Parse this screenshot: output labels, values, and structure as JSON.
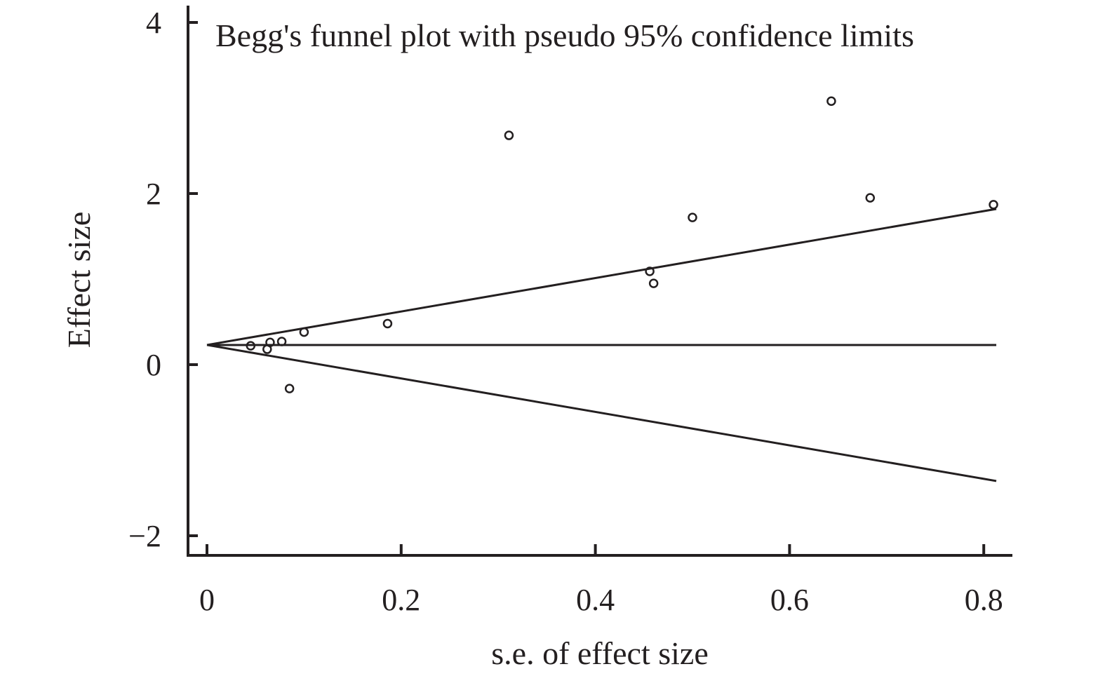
{
  "chart_data": {
    "type": "scatter",
    "title": "Begg's funnel plot with pseudo 95% confidence limits",
    "xlabel": "s.e. of effect size",
    "ylabel": "Effect size",
    "xlim": [
      0,
      0.82
    ],
    "ylim": [
      -2.1,
      4.1
    ],
    "x_ticks": [
      0,
      0.2,
      0.4,
      0.6,
      0.8
    ],
    "x_tick_labels": [
      "0",
      "0.2",
      "0.4",
      "0.6",
      "0.8"
    ],
    "y_ticks": [
      -2,
      0,
      2,
      4
    ],
    "y_tick_labels": [
      "−2",
      "0",
      "2",
      "4"
    ],
    "grid": false,
    "points": [
      {
        "x": 0.045,
        "y": 0.22
      },
      {
        "x": 0.062,
        "y": 0.18
      },
      {
        "x": 0.065,
        "y": 0.26
      },
      {
        "x": 0.077,
        "y": 0.27
      },
      {
        "x": 0.085,
        "y": -0.28
      },
      {
        "x": 0.1,
        "y": 0.38
      },
      {
        "x": 0.186,
        "y": 0.48
      },
      {
        "x": 0.311,
        "y": 2.68
      },
      {
        "x": 0.456,
        "y": 1.09
      },
      {
        "x": 0.46,
        "y": 0.95
      },
      {
        "x": 0.5,
        "y": 1.72
      },
      {
        "x": 0.643,
        "y": 3.08
      },
      {
        "x": 0.683,
        "y": 1.95
      },
      {
        "x": 0.81,
        "y": 1.87
      }
    ],
    "pooled_estimate": 0.23,
    "pooled_line_x_range": [
      0,
      0.81
    ],
    "confidence_limits": {
      "upper": [
        {
          "x": 0,
          "y": 0.23
        },
        {
          "x": 0.81,
          "y": 1.82
        }
      ],
      "lower": [
        {
          "x": 0,
          "y": 0.23
        },
        {
          "x": 0.81,
          "y": -1.36
        }
      ]
    }
  }
}
